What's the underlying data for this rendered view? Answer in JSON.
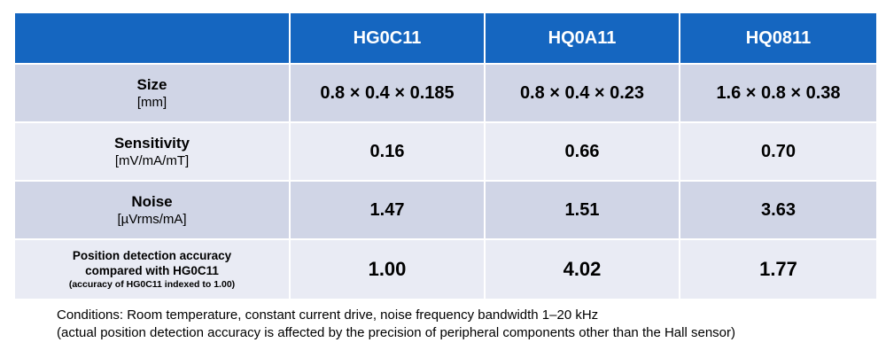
{
  "table": {
    "headers": [
      "",
      "HG0C11",
      "HQ0A11",
      "HQ0811"
    ],
    "rows": [
      {
        "title": "Size",
        "unit": "[mm]",
        "values": [
          "0.8 × 0.4 × 0.185",
          "0.8 × 0.4 × 0.23",
          "1.6 × 0.8 × 0.38"
        ]
      },
      {
        "title": "Sensitivity",
        "unit": "[mV/mA/mT]",
        "values": [
          "0.16",
          "0.66",
          "0.70"
        ]
      },
      {
        "title": "Noise",
        "unit": "[µVrms/mA]",
        "values": [
          "1.47",
          "1.51",
          "3.63"
        ]
      },
      {
        "title_line1": "Position detection accuracy",
        "title_line2": "compared with HG0C11",
        "note": "(accuracy of HG0C11 indexed to 1.00)",
        "values": [
          "1.00",
          "4.02",
          "1.77"
        ]
      }
    ]
  },
  "notes": {
    "line1": "Conditions: Room temperature, constant current drive, noise frequency bandwidth 1–20 kHz",
    "line2": "(actual position detection accuracy is affected by the precision of peripheral components other than the Hall sensor)"
  },
  "colors": {
    "header_bg": "#1566c0",
    "row_dark": "#d0d5e6",
    "row_light": "#e9ebf4"
  }
}
